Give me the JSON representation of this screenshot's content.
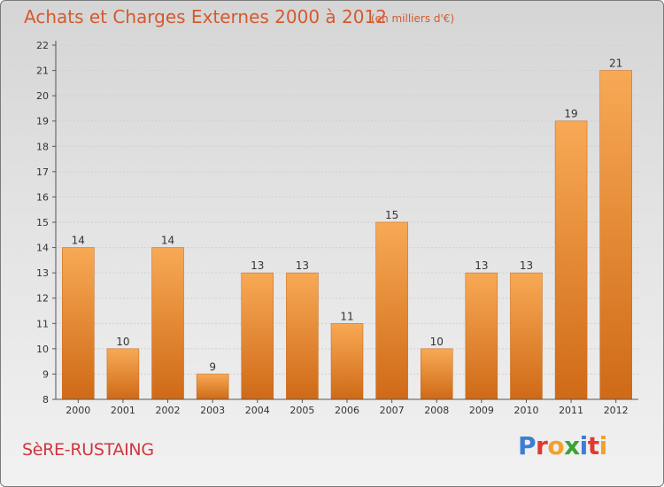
{
  "header": {
    "title": "Achats et Charges Externes 2000 à 2012",
    "subtitle": "(en milliers d'€)"
  },
  "footer": {
    "town": "SèRE-RUSTAING",
    "logo": "Proxiti"
  },
  "chart_data": {
    "type": "bar",
    "title": "Achats et Charges Externes 2000 à 2012",
    "subtitle": "(en milliers d'€)",
    "categories": [
      "2000",
      "2001",
      "2002",
      "2003",
      "2004",
      "2005",
      "2006",
      "2007",
      "2008",
      "2009",
      "2010",
      "2011",
      "2012"
    ],
    "values": [
      14,
      10,
      14,
      9,
      13,
      13,
      11,
      15,
      10,
      13,
      13,
      19,
      21
    ],
    "ylim": [
      8,
      22
    ],
    "yticks": [
      8,
      9,
      10,
      11,
      12,
      13,
      14,
      15,
      16,
      17,
      18,
      19,
      20,
      21,
      22
    ],
    "grid": true,
    "colors": {
      "bar_top": "#f7a552",
      "bar_bottom": "#d06a18",
      "axis": "#555555"
    }
  }
}
